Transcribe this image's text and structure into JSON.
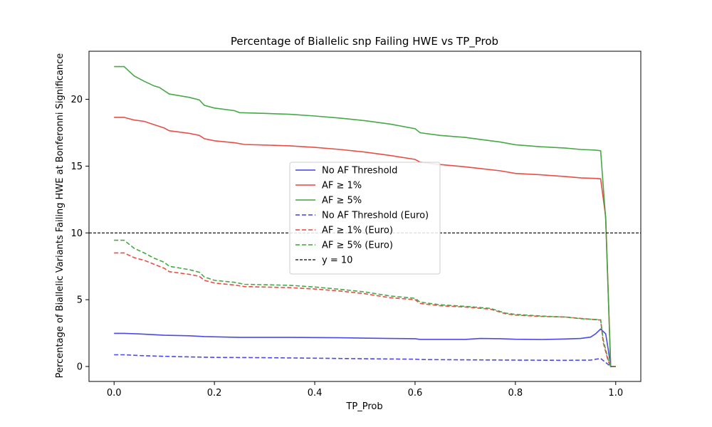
{
  "chart_data": {
    "type": "line",
    "title": "Percentage of Biallelic snp Failing HWE vs TP_Prob",
    "xlabel": "TP_Prob",
    "ylabel": "Percentage of Biallelic Variants Failing HWE at Bonferonni Significance",
    "xlim": [
      -0.05,
      1.05
    ],
    "ylim": [
      -1.12,
      23.6
    ],
    "xticks": [
      0.0,
      0.2,
      0.4,
      0.6,
      0.8,
      1.0
    ],
    "xtick_labels": [
      "0.0",
      "0.2",
      "0.4",
      "0.6",
      "0.8",
      "1.0"
    ],
    "yticks": [
      0,
      5,
      10,
      15,
      20
    ],
    "ytick_labels": [
      "0",
      "5",
      "10",
      "15",
      "20"
    ],
    "grid": false,
    "legend_position": "center",
    "series": [
      {
        "name": "No AF Threshold",
        "color": "#4040e8",
        "dash": "solid",
        "points": [
          [
            0.0,
            2.48
          ],
          [
            0.02,
            2.48
          ],
          [
            0.05,
            2.44
          ],
          [
            0.08,
            2.38
          ],
          [
            0.1,
            2.34
          ],
          [
            0.15,
            2.3
          ],
          [
            0.18,
            2.24
          ],
          [
            0.25,
            2.18
          ],
          [
            0.35,
            2.18
          ],
          [
            0.45,
            2.15
          ],
          [
            0.55,
            2.1
          ],
          [
            0.6,
            2.08
          ],
          [
            0.61,
            2.03
          ],
          [
            0.7,
            2.03
          ],
          [
            0.73,
            2.1
          ],
          [
            0.77,
            2.08
          ],
          [
            0.8,
            2.04
          ],
          [
            0.85,
            2.02
          ],
          [
            0.9,
            2.06
          ],
          [
            0.93,
            2.1
          ],
          [
            0.95,
            2.2
          ],
          [
            0.96,
            2.45
          ],
          [
            0.97,
            2.8
          ],
          [
            0.98,
            2.45
          ],
          [
            0.985,
            1.3
          ],
          [
            0.99,
            0.0
          ],
          [
            1.0,
            0.0
          ]
        ]
      },
      {
        "name": "AF ≥ 1%",
        "color": "#e8453c",
        "dash": "solid",
        "points": [
          [
            0.0,
            18.65
          ],
          [
            0.02,
            18.65
          ],
          [
            0.04,
            18.45
          ],
          [
            0.06,
            18.35
          ],
          [
            0.08,
            18.1
          ],
          [
            0.1,
            17.85
          ],
          [
            0.11,
            17.65
          ],
          [
            0.15,
            17.45
          ],
          [
            0.17,
            17.3
          ],
          [
            0.18,
            17.05
          ],
          [
            0.2,
            16.9
          ],
          [
            0.24,
            16.75
          ],
          [
            0.26,
            16.62
          ],
          [
            0.3,
            16.58
          ],
          [
            0.35,
            16.52
          ],
          [
            0.4,
            16.4
          ],
          [
            0.45,
            16.25
          ],
          [
            0.5,
            16.05
          ],
          [
            0.55,
            15.8
          ],
          [
            0.6,
            15.5
          ],
          [
            0.61,
            15.3
          ],
          [
            0.65,
            15.12
          ],
          [
            0.7,
            14.95
          ],
          [
            0.73,
            14.82
          ],
          [
            0.77,
            14.65
          ],
          [
            0.8,
            14.45
          ],
          [
            0.85,
            14.35
          ],
          [
            0.9,
            14.22
          ],
          [
            0.93,
            14.12
          ],
          [
            0.96,
            14.08
          ],
          [
            0.97,
            14.05
          ],
          [
            0.98,
            11.2
          ],
          [
            0.99,
            0.0
          ],
          [
            1.0,
            0.0
          ]
        ]
      },
      {
        "name": "AF ≥ 5%",
        "color": "#3da33d",
        "dash": "solid",
        "points": [
          [
            0.0,
            22.45
          ],
          [
            0.02,
            22.45
          ],
          [
            0.04,
            21.75
          ],
          [
            0.06,
            21.35
          ],
          [
            0.08,
            21.0
          ],
          [
            0.09,
            20.9
          ],
          [
            0.11,
            20.4
          ],
          [
            0.15,
            20.15
          ],
          [
            0.17,
            19.95
          ],
          [
            0.18,
            19.55
          ],
          [
            0.2,
            19.35
          ],
          [
            0.24,
            19.15
          ],
          [
            0.25,
            19.0
          ],
          [
            0.3,
            18.95
          ],
          [
            0.35,
            18.88
          ],
          [
            0.4,
            18.75
          ],
          [
            0.45,
            18.6
          ],
          [
            0.5,
            18.4
          ],
          [
            0.55,
            18.15
          ],
          [
            0.6,
            17.8
          ],
          [
            0.61,
            17.5
          ],
          [
            0.65,
            17.3
          ],
          [
            0.7,
            17.15
          ],
          [
            0.73,
            17.0
          ],
          [
            0.77,
            16.8
          ],
          [
            0.8,
            16.6
          ],
          [
            0.85,
            16.45
          ],
          [
            0.9,
            16.35
          ],
          [
            0.93,
            16.25
          ],
          [
            0.96,
            16.2
          ],
          [
            0.97,
            16.15
          ],
          [
            0.98,
            11.0
          ],
          [
            0.99,
            0.0
          ],
          [
            1.0,
            0.0
          ]
        ]
      },
      {
        "name": "No AF Threshold (Euro)",
        "color": "#4040e8",
        "dash": "dashed",
        "points": [
          [
            0.0,
            0.88
          ],
          [
            0.02,
            0.88
          ],
          [
            0.05,
            0.82
          ],
          [
            0.1,
            0.76
          ],
          [
            0.15,
            0.72
          ],
          [
            0.2,
            0.68
          ],
          [
            0.3,
            0.66
          ],
          [
            0.4,
            0.62
          ],
          [
            0.5,
            0.58
          ],
          [
            0.6,
            0.55
          ],
          [
            0.61,
            0.52
          ],
          [
            0.7,
            0.5
          ],
          [
            0.8,
            0.48
          ],
          [
            0.9,
            0.46
          ],
          [
            0.95,
            0.48
          ],
          [
            0.97,
            0.6
          ],
          [
            0.98,
            0.3
          ],
          [
            0.99,
            0.0
          ],
          [
            1.0,
            0.0
          ]
        ]
      },
      {
        "name": "AF ≥ 1% (Euro)",
        "color": "#e8453c",
        "dash": "dashed",
        "points": [
          [
            0.0,
            8.5
          ],
          [
            0.02,
            8.5
          ],
          [
            0.04,
            8.15
          ],
          [
            0.06,
            7.95
          ],
          [
            0.08,
            7.65
          ],
          [
            0.1,
            7.35
          ],
          [
            0.11,
            7.1
          ],
          [
            0.15,
            6.9
          ],
          [
            0.17,
            6.75
          ],
          [
            0.18,
            6.45
          ],
          [
            0.2,
            6.25
          ],
          [
            0.24,
            6.1
          ],
          [
            0.26,
            5.98
          ],
          [
            0.3,
            5.95
          ],
          [
            0.35,
            5.9
          ],
          [
            0.4,
            5.8
          ],
          [
            0.45,
            5.65
          ],
          [
            0.5,
            5.45
          ],
          [
            0.55,
            5.15
          ],
          [
            0.6,
            5.0
          ],
          [
            0.61,
            4.72
          ],
          [
            0.65,
            4.55
          ],
          [
            0.7,
            4.45
          ],
          [
            0.75,
            4.3
          ],
          [
            0.78,
            3.95
          ],
          [
            0.8,
            3.85
          ],
          [
            0.85,
            3.75
          ],
          [
            0.9,
            3.7
          ],
          [
            0.93,
            3.6
          ],
          [
            0.97,
            3.48
          ],
          [
            0.975,
            1.8
          ],
          [
            0.985,
            0.4
          ],
          [
            0.99,
            0.0
          ],
          [
            1.0,
            0.0
          ]
        ]
      },
      {
        "name": "AF ≥ 5% (Euro)",
        "color": "#3da33d",
        "dash": "dashed",
        "points": [
          [
            0.0,
            9.45
          ],
          [
            0.02,
            9.45
          ],
          [
            0.04,
            8.85
          ],
          [
            0.06,
            8.5
          ],
          [
            0.08,
            8.1
          ],
          [
            0.1,
            7.8
          ],
          [
            0.11,
            7.5
          ],
          [
            0.15,
            7.25
          ],
          [
            0.17,
            7.05
          ],
          [
            0.18,
            6.7
          ],
          [
            0.2,
            6.45
          ],
          [
            0.24,
            6.3
          ],
          [
            0.26,
            6.15
          ],
          [
            0.3,
            6.12
          ],
          [
            0.35,
            6.08
          ],
          [
            0.4,
            5.95
          ],
          [
            0.45,
            5.78
          ],
          [
            0.5,
            5.58
          ],
          [
            0.55,
            5.28
          ],
          [
            0.6,
            5.1
          ],
          [
            0.61,
            4.82
          ],
          [
            0.65,
            4.62
          ],
          [
            0.7,
            4.5
          ],
          [
            0.75,
            4.35
          ],
          [
            0.78,
            4.0
          ],
          [
            0.8,
            3.9
          ],
          [
            0.85,
            3.78
          ],
          [
            0.9,
            3.7
          ],
          [
            0.93,
            3.58
          ],
          [
            0.97,
            3.5
          ],
          [
            0.975,
            2.0
          ],
          [
            0.985,
            0.5
          ],
          [
            0.99,
            0.0
          ],
          [
            1.0,
            0.0
          ]
        ]
      },
      {
        "name": "y = 10",
        "color": "#000000",
        "dash": "dashed",
        "points": [
          [
            -0.05,
            10
          ],
          [
            1.05,
            10
          ]
        ]
      }
    ]
  }
}
